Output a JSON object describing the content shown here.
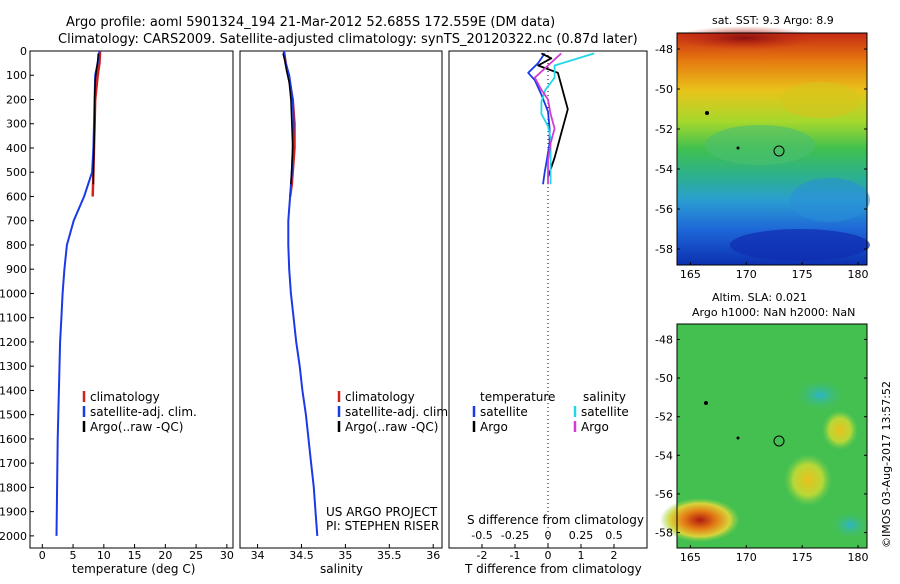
{
  "header": {
    "line1": "Argo profile: aoml 5901324_194 21-Mar-2012 52.685S 172.559E (DM data)",
    "line2": "Climatology: CARS2009. Satellite-adjusted climatology: synTS_20120322.nc (0.87d later)"
  },
  "panels": {
    "depth_ticks": [
      "0",
      "100",
      "200",
      "300",
      "400",
      "500",
      "600",
      "700",
      "800",
      "900",
      "1000",
      "1100",
      "1200",
      "1300",
      "1400",
      "1500",
      "1600",
      "1700",
      "1800",
      "1900",
      "2000"
    ],
    "temperature": {
      "xlabel": "temperature (deg C)",
      "xticks": [
        "0",
        "5",
        "10",
        "15",
        "20",
        "25",
        "30"
      ],
      "legend": [
        "climatology",
        "satellite-adj. clim.",
        "Argo(..raw -QC)"
      ]
    },
    "salinity": {
      "xlabel": "salinity",
      "xticks": [
        "34",
        "34.5",
        "35",
        "35.5",
        "36"
      ],
      "legend": [
        "climatology",
        "satellite-adj. clim.",
        "Argo(..raw -QC)"
      ],
      "note1": "US ARGO PROJECT",
      "note2": "PI: STEPHEN RISER"
    },
    "difference": {
      "xlabel_bottom": "T difference from climatology",
      "xlabel_top": "S difference from climatology",
      "t_ticks": [
        "-2",
        "-1",
        "0",
        "1",
        "2"
      ],
      "s_ticks": [
        "-0.5",
        "-0.25",
        "0",
        "0.25",
        "0.5"
      ],
      "legend_temp_title": "temperature",
      "legend_sal_title": "salinity",
      "legend_temp": [
        "satellite",
        "Argo"
      ],
      "legend_sal": [
        "satellite",
        "Argo"
      ]
    }
  },
  "maps": {
    "sst": {
      "title": "sat. SST: 9.3 Argo: 8.9",
      "yticks": [
        "-48",
        "-50",
        "-52",
        "-54",
        "-56",
        "-58"
      ],
      "xticks": [
        "165",
        "170",
        "175",
        "180"
      ]
    },
    "sla": {
      "title1": "Altim. SLA: 0.021",
      "title2": "Argo h1000: NaN h2000: NaN",
      "yticks": [
        "-48",
        "-50",
        "-52",
        "-54",
        "-56",
        "-58"
      ],
      "xticks": [
        "165",
        "170",
        "175",
        "180"
      ]
    },
    "credit": "©IMOS 03-Aug-2017 13:57:52"
  },
  "colors": {
    "climatology": "#d42020",
    "satellite_adj": "#1a3ae8",
    "argo": "#000000",
    "sat_sal": "#22d8e8",
    "argo_sal": "#d23cd2"
  },
  "chart_data": [
    {
      "type": "line",
      "title": "",
      "xlabel": "temperature (deg C)",
      "ylabel": "",
      "xlim": [
        -2,
        31
      ],
      "ylim": [
        0,
        2050
      ],
      "y_reversed": true,
      "series": [
        {
          "name": "climatology",
          "x": [
            9.4,
            9.3,
            9.0,
            8.6,
            8.5,
            8.4,
            8.3,
            8.2
          ],
          "y": [
            0,
            50,
            100,
            200,
            300,
            400,
            500,
            600
          ]
        },
        {
          "name": "satellite-adj. clim.",
          "x": [
            9.3,
            9.0,
            8.6,
            8.5,
            8.4,
            8.3,
            8.1,
            6.8,
            5.1,
            4.0,
            3.6,
            3.3,
            3.1,
            2.9,
            2.8,
            2.7,
            2.6,
            2.5,
            2.45,
            2.4,
            2.35,
            2.3
          ],
          "y": [
            0,
            50,
            100,
            200,
            300,
            400,
            500,
            600,
            700,
            800,
            900,
            1000,
            1100,
            1200,
            1300,
            1400,
            1500,
            1600,
            1700,
            1800,
            1900,
            2000
          ]
        },
        {
          "name": "Argo(..raw -QC)",
          "x": [
            9.1,
            9.0,
            8.8,
            8.6,
            8.5,
            8.5,
            8.4,
            8.3,
            8.3
          ],
          "y": [
            10,
            40,
            80,
            120,
            200,
            300,
            400,
            480,
            550
          ]
        }
      ]
    },
    {
      "type": "line",
      "title": "",
      "xlabel": "salinity",
      "ylabel": "",
      "xlim": [
        33.8,
        36.1
      ],
      "ylim": [
        0,
        2050
      ],
      "y_reversed": true,
      "series": [
        {
          "name": "climatology",
          "x": [
            34.3,
            34.32,
            34.35,
            34.4,
            34.42,
            34.42,
            34.4,
            34.39,
            34.37
          ],
          "y": [
            0,
            50,
            100,
            200,
            300,
            400,
            500,
            550,
            600
          ]
        },
        {
          "name": "satellite-adj. clim.",
          "x": [
            34.3,
            34.32,
            34.36,
            34.4,
            34.41,
            34.4,
            34.39,
            34.37,
            34.35,
            34.35,
            34.36,
            34.38,
            34.41,
            34.44,
            34.48,
            34.51,
            34.55,
            34.58,
            34.61,
            34.64,
            34.66,
            34.68
          ],
          "y": [
            0,
            50,
            100,
            200,
            300,
            400,
            500,
            600,
            700,
            800,
            900,
            1000,
            1100,
            1200,
            1300,
            1400,
            1500,
            1600,
            1700,
            1800,
            1900,
            2000
          ]
        },
        {
          "name": "Argo(..raw -QC)",
          "x": [
            34.29,
            34.31,
            34.33,
            34.36,
            34.38,
            34.39,
            34.4,
            34.39,
            34.38
          ],
          "y": [
            10,
            40,
            80,
            130,
            200,
            300,
            400,
            480,
            550
          ]
        }
      ]
    },
    {
      "type": "line",
      "title": "",
      "xlabel": "T difference from climatology",
      "ylabel": "",
      "xlim": [
        -3,
        3
      ],
      "ylim": [
        0,
        2050
      ],
      "y_reversed": true,
      "series": [
        {
          "name": "temperature satellite",
          "x": [
            -0.1,
            -0.3,
            -0.6,
            -0.4,
            -0.2,
            0.0,
            0.05,
            0.05,
            0.0,
            -0.05,
            -0.1,
            -0.15
          ],
          "y": [
            10,
            50,
            90,
            120,
            180,
            250,
            320,
            380,
            420,
            460,
            500,
            550
          ]
        },
        {
          "name": "temperature Argo",
          "x": [
            -0.2,
            0.1,
            -0.3,
            0.3,
            0.4,
            0.5,
            0.6,
            0.5,
            0.4,
            0.3,
            0.2,
            0.0
          ],
          "y": [
            10,
            30,
            60,
            90,
            140,
            190,
            240,
            290,
            340,
            390,
            440,
            520
          ]
        },
        {
          "name": "salinity satellite",
          "x": [
            0.35,
            0.05,
            0.05,
            -0.02,
            -0.05,
            -0.05,
            0.0,
            0.02,
            0.02,
            0.02
          ],
          "y": [
            10,
            60,
            110,
            160,
            210,
            260,
            310,
            360,
            430,
            550
          ]
        },
        {
          "name": "salinity Argo",
          "x": [
            0.1,
            0.0,
            -0.1,
            -0.05,
            0.0,
            0.02,
            0.05,
            0.02,
            0.0,
            0.0
          ],
          "y": [
            10,
            60,
            110,
            160,
            200,
            260,
            320,
            380,
            450,
            550
          ]
        }
      ]
    }
  ]
}
